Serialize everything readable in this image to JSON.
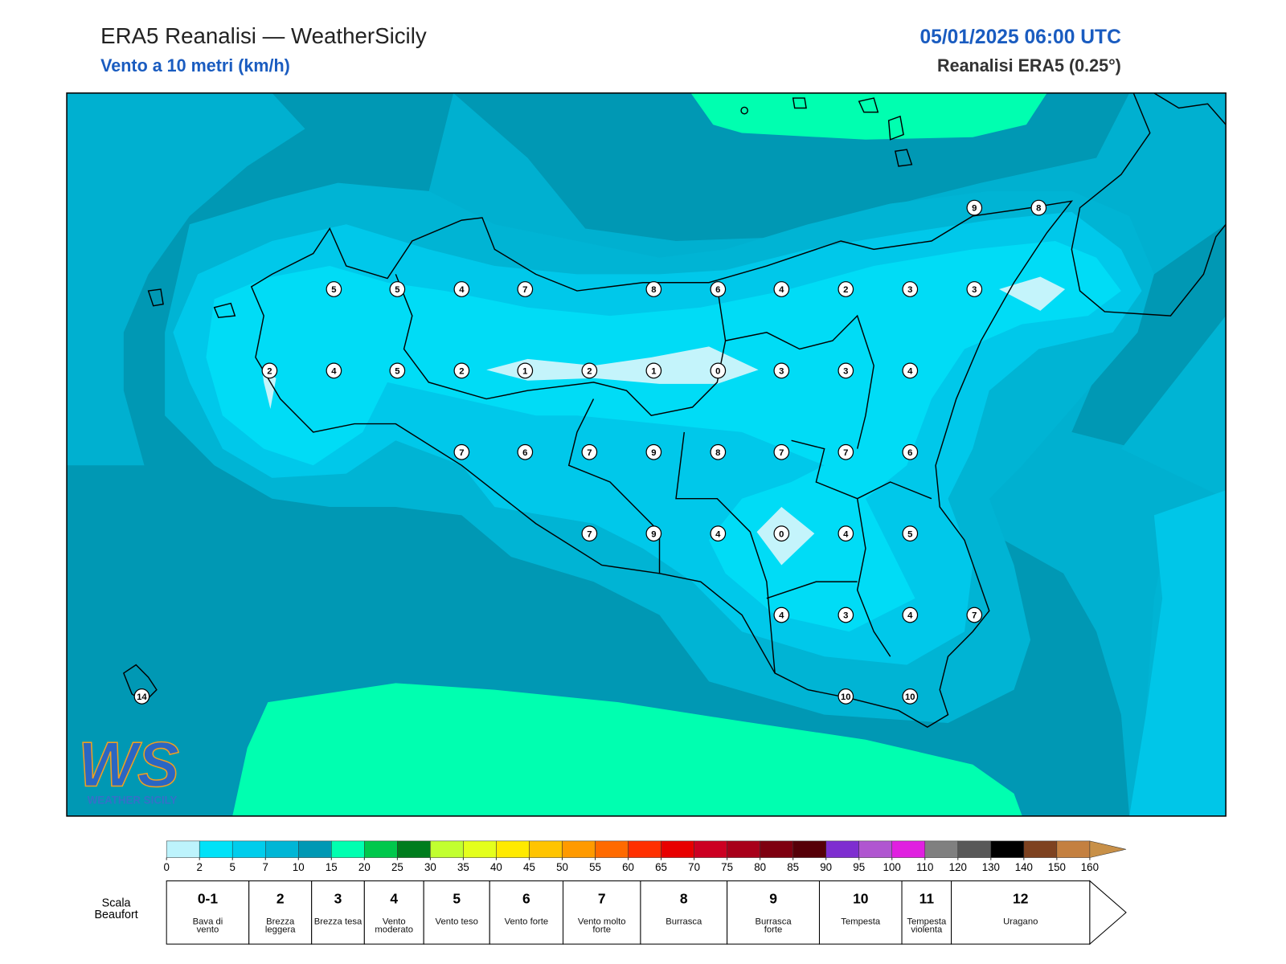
{
  "header": {
    "title": "ERA5 Reanalisi — WeatherSicily",
    "subtitle": "Vento a 10 metri (km/h)",
    "datetime": "05/01/2025 06:00 UTC",
    "source": "Reanalisi ERA5 (0.25°)"
  },
  "stations": {
    "values": [
      9,
      8,
      5,
      5,
      4,
      7,
      8,
      6,
      4,
      2,
      3,
      3,
      2,
      4,
      5,
      2,
      1,
      2,
      1,
      0,
      3,
      3,
      4,
      7,
      6,
      7,
      9,
      8,
      7,
      7,
      6,
      7,
      9,
      4,
      0,
      4,
      5,
      4,
      3,
      4,
      7,
      10,
      10,
      14
    ]
  },
  "logo": {
    "mark": "WS",
    "text": "WEATHER SICILY"
  },
  "colorbar": {
    "ticks": [
      0,
      2,
      5,
      7,
      10,
      15,
      20,
      25,
      30,
      35,
      40,
      45,
      50,
      55,
      60,
      65,
      70,
      75,
      80,
      85,
      90,
      95,
      100,
      110,
      120,
      130,
      140,
      150,
      160
    ],
    "colors": [
      "#bdf3fc",
      "#00e2f8",
      "#00cdec",
      "#00b6d6",
      "#0098b4",
      "#00ffb0",
      "#00c84c",
      "#007d1e",
      "#c2ff30",
      "#e4ff1c",
      "#ffea00",
      "#ffc400",
      "#ff9a00",
      "#ff6a00",
      "#ff3000",
      "#e80000",
      "#cc0022",
      "#a8001a",
      "#7e0010",
      "#560008",
      "#7e2ed0",
      "#b056d0",
      "#e020e0",
      "#808080",
      "#585858",
      "#000000",
      "#7e4220",
      "#c48040"
    ],
    "arrow_color": "#c89048"
  },
  "beaufort": {
    "label": "Scala Beaufort",
    "levels": [
      {
        "force": "0-1",
        "name": "Bava di vento"
      },
      {
        "force": "2",
        "name": "Brezza leggera"
      },
      {
        "force": "3",
        "name": "Brezza tesa"
      },
      {
        "force": "4",
        "name": "Vento moderato"
      },
      {
        "force": "5",
        "name": "Vento teso"
      },
      {
        "force": "6",
        "name": "Vento forte"
      },
      {
        "force": "7",
        "name": "Vento molto forte"
      },
      {
        "force": "8",
        "name": "Burrasca"
      },
      {
        "force": "9",
        "name": "Burrasca forte"
      },
      {
        "force": "10",
        "name": "Tempesta"
      },
      {
        "force": "11",
        "name": "Tempesta violenta"
      },
      {
        "force": "12",
        "name": "Uragano"
      }
    ]
  }
}
